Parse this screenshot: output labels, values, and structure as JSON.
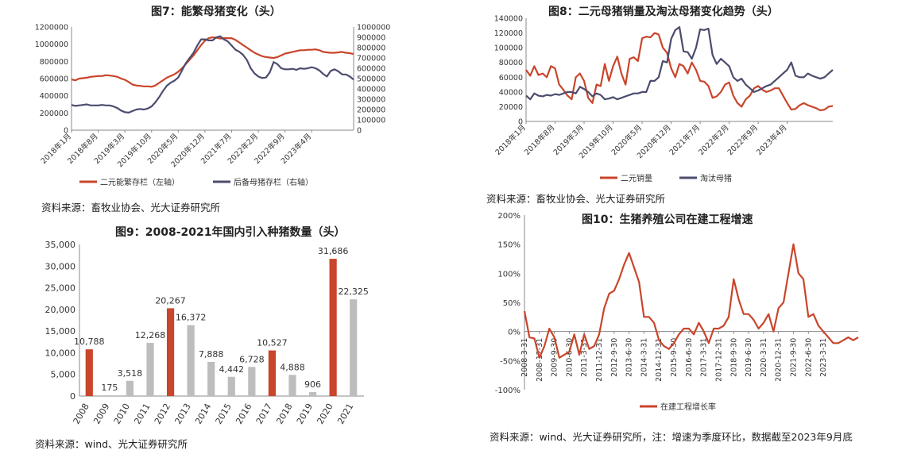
{
  "colors": {
    "red": "#C9452B",
    "navy": "#4B4C6E",
    "grey": "#BDBDBD",
    "axis": "#888888"
  },
  "chart_data": [
    {
      "id": "fig7",
      "type": "line",
      "title": "图7：能繁母猪变化（头）",
      "x_tick_labels": [
        "2018年1月",
        "2018年8月",
        "2019年3月",
        "2019年10月",
        "2020年5月",
        "2020年12月",
        "2021年7月",
        "2022年2月",
        "2022年9月",
        "2023年4月"
      ],
      "ylim_left": [
        0,
        1200000
      ],
      "yticks_left": [
        "0",
        "200000",
        "400000",
        "600000",
        "800000",
        "1000000",
        "1200000"
      ],
      "ylim_right": [
        0,
        1000000
      ],
      "yticks_right": [
        "0",
        "100000",
        "200000",
        "300000",
        "400000",
        "500000",
        "600000",
        "700000",
        "800000",
        "900000",
        "1000000"
      ],
      "series": [
        {
          "name": "二元能繁存栏（左轴）",
          "axis": "left",
          "color": "#C9452B",
          "values": [
            590000,
            580000,
            600000,
            605000,
            610000,
            620000,
            625000,
            630000,
            630000,
            640000,
            635000,
            630000,
            620000,
            600000,
            585000,
            560000,
            530000,
            520000,
            515000,
            510000,
            510000,
            505000,
            520000,
            550000,
            580000,
            610000,
            630000,
            650000,
            680000,
            720000,
            770000,
            820000,
            870000,
            930000,
            990000,
            1040000,
            1070000,
            1080000,
            1075000,
            1065000,
            1070000,
            1070000,
            1070000,
            1050000,
            1020000,
            990000,
            960000,
            930000,
            900000,
            880000,
            860000,
            850000,
            845000,
            840000,
            850000,
            870000,
            890000,
            900000,
            910000,
            920000,
            930000,
            930000,
            935000,
            935000,
            940000,
            930000,
            910000,
            905000,
            900000,
            900000,
            905000,
            910000,
            900000,
            895000,
            885000
          ]
        },
        {
          "name": "后备母猪存栏（右轴）",
          "axis": "right",
          "color": "#4B4C6E",
          "values": [
            245000,
            235000,
            240000,
            245000,
            250000,
            240000,
            240000,
            240000,
            245000,
            240000,
            240000,
            230000,
            215000,
            190000,
            175000,
            170000,
            185000,
            200000,
            205000,
            200000,
            210000,
            230000,
            270000,
            320000,
            380000,
            430000,
            460000,
            480000,
            510000,
            580000,
            650000,
            700000,
            750000,
            820000,
            880000,
            880000,
            870000,
            870000,
            900000,
            910000,
            880000,
            860000,
            820000,
            780000,
            760000,
            730000,
            680000,
            600000,
            550000,
            520000,
            505000,
            510000,
            560000,
            660000,
            640000,
            600000,
            590000,
            590000,
            595000,
            585000,
            600000,
            595000,
            600000,
            610000,
            600000,
            580000,
            545000,
            520000,
            575000,
            590000,
            570000,
            540000,
            540000,
            520000,
            490000
          ]
        }
      ]
    },
    {
      "id": "fig8",
      "type": "line",
      "title": "图8：二元母猪销量及淘汰母猪变化趋势（头）",
      "x_tick_labels": [
        "2018年1月",
        "2018年8月",
        "2019年3月",
        "2019年10月",
        "2020年5月",
        "2020年12月",
        "2021年7月",
        "2022年2月",
        "2022年9月",
        "2023年4月"
      ],
      "ylim": [
        0,
        140000
      ],
      "yticks": [
        "0",
        "20000",
        "40000",
        "60000",
        "80000",
        "100000",
        "120000",
        "140000"
      ],
      "series": [
        {
          "name": "二元销量",
          "color": "#C9452B",
          "values": [
            70000,
            62000,
            75000,
            63000,
            65000,
            60000,
            75000,
            72000,
            50000,
            43000,
            35000,
            30000,
            60000,
            65000,
            55000,
            32000,
            25000,
            50000,
            48000,
            78000,
            55000,
            75000,
            88000,
            65000,
            50000,
            85000,
            87000,
            82000,
            113000,
            115000,
            114000,
            120000,
            118000,
            100000,
            93000,
            72000,
            60000,
            78000,
            75000,
            65000,
            80000,
            70000,
            55000,
            54000,
            48000,
            32000,
            34000,
            40000,
            50000,
            53000,
            35000,
            25000,
            20000,
            30000,
            35000,
            45000,
            48000,
            43000,
            40000,
            42000,
            45000,
            45000,
            35000,
            25000,
            16000,
            17000,
            22000,
            25000,
            22000,
            20000,
            18000,
            15000,
            16000,
            20000,
            21000
          ]
        },
        {
          "name": "淘汰母猪",
          "color": "#4B4C6E",
          "values": [
            35000,
            30000,
            38000,
            35000,
            34000,
            36000,
            35000,
            37000,
            36000,
            38000,
            40000,
            40000,
            38000,
            47000,
            44000,
            40000,
            34000,
            38000,
            36000,
            30000,
            31000,
            33000,
            30000,
            32000,
            34000,
            36000,
            38000,
            38000,
            40000,
            40000,
            55000,
            55000,
            60000,
            82000,
            80000,
            112000,
            124000,
            128000,
            95000,
            94000,
            85000,
            100000,
            125000,
            124000,
            126000,
            90000,
            78000,
            85000,
            80000,
            75000,
            60000,
            55000,
            58000,
            50000,
            45000,
            40000,
            42000,
            45000,
            48000,
            50000,
            55000,
            60000,
            65000,
            70000,
            80000,
            62000,
            60000,
            60000,
            65000,
            62000,
            60000,
            58000,
            60000,
            65000,
            70000
          ]
        }
      ]
    },
    {
      "id": "fig9",
      "type": "bar",
      "title": "图9：2008-2021年国内引入种猪数量（头）",
      "categories": [
        "2008",
        "2009",
        "2010",
        "2011",
        "2012",
        "2013",
        "2014",
        "2015",
        "2016",
        "2017",
        "2018",
        "2019",
        "2020",
        "2021"
      ],
      "values": [
        10788,
        175,
        3518,
        12268,
        20267,
        16372,
        7888,
        4442,
        6728,
        10527,
        4888,
        906,
        31686,
        22325
      ],
      "value_labels": [
        "10,788",
        "175",
        "3,518",
        "12,268",
        "20,267",
        "16,372",
        "7,888",
        "4,442",
        "6,728",
        "10,527",
        "4,888",
        "906",
        "31,686",
        "22,325"
      ],
      "bar_colors": [
        "red",
        "grey",
        "grey",
        "grey",
        "red",
        "grey",
        "grey",
        "grey",
        "grey",
        "red",
        "grey",
        "grey",
        "red",
        "grey"
      ],
      "ylim": [
        0,
        35000
      ],
      "yticks": [
        "0",
        "5,000",
        "10,000",
        "15,000",
        "20,000",
        "25,000",
        "30,000",
        "35,000"
      ]
    },
    {
      "id": "fig10",
      "type": "line",
      "title": "图10：生猪养殖公司在建工程增速",
      "x_tick_labels": [
        "2008-3-31",
        "2008-12-31",
        "2009-9-30",
        "2010-6-30",
        "2011-3-31",
        "2011-12-31",
        "2012-9-30",
        "2013-6-30",
        "2014-3-31",
        "2014-12-31",
        "2015-9-30",
        "2016-6-30",
        "2017-3-31",
        "2017-12-31",
        "2018-9-30",
        "2019-6-30",
        "2020-3-31",
        "2020-12-31",
        "2021-9-30",
        "2022-6-30",
        "2023-3-31"
      ],
      "ylim": [
        -100,
        200
      ],
      "yticks": [
        "-100%",
        "-50%",
        "0%",
        "50%",
        "100%",
        "150%",
        "200%"
      ],
      "series": [
        {
          "name": "在建工程增长率",
          "color": "#C9452B",
          "values": [
            35,
            -10,
            -12,
            -45,
            -25,
            5,
            -10,
            -45,
            -40,
            -35,
            -5,
            -40,
            -5,
            -30,
            -25,
            -5,
            40,
            65,
            70,
            90,
            115,
            135,
            110,
            85,
            25,
            25,
            15,
            -15,
            -25,
            -30,
            -20,
            -5,
            5,
            5,
            -5,
            15,
            0,
            -20,
            5,
            5,
            10,
            25,
            90,
            55,
            30,
            30,
            20,
            5,
            15,
            30,
            0,
            40,
            50,
            100,
            150,
            100,
            90,
            25,
            30,
            10,
            0,
            -10,
            -20,
            -20,
            -15,
            -10,
            -15,
            -10
          ]
        }
      ]
    }
  ],
  "legends": {
    "fig7": [
      "二元能繁存栏（左轴）",
      "后备母猪存栏（右轴）"
    ],
    "fig8": [
      "二元销量",
      "淘汰母猪"
    ],
    "fig10": [
      "在建工程增长率"
    ]
  },
  "sources": {
    "fig7": "资料来源：畜牧业协会、光大证券研究所",
    "fig8": "资料来源：畜牧业协会、光大证券研究所",
    "fig9": "资料来源：wind、光大证券研究所",
    "fig10": "资料来源：wind、光大证券研究所，注：增速为季度环比，数据截至2023年9月底"
  }
}
